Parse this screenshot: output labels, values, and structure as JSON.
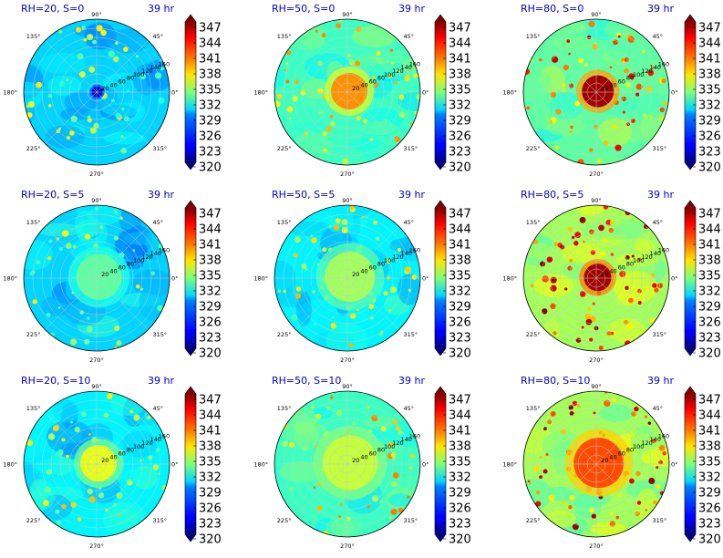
{
  "chart_data": {
    "type": "polar-contour-grid",
    "time_label": "39 hr",
    "angle_ticks": [
      "0°",
      "45°",
      "90°",
      "135°",
      "180°",
      "225°",
      "270°",
      "315°"
    ],
    "radius_ticks": [
      20,
      40,
      60,
      80,
      100,
      120,
      140,
      160
    ],
    "colorbar": {
      "min": 320,
      "max": 350,
      "ticks": [
        320,
        323,
        326,
        329,
        332,
        335,
        338,
        341,
        344,
        347
      ],
      "colormap": "jet",
      "extend": "both"
    },
    "panels": [
      {
        "title": "RH=20, S=0",
        "rh": 20,
        "s": 0,
        "mean": 330,
        "core": 322,
        "core_extent": 12
      },
      {
        "title": "RH=50, S=0",
        "rh": 50,
        "s": 0,
        "mean": 333,
        "core": 342,
        "core_extent": 40
      },
      {
        "title": "RH=80, S=0",
        "rh": 80,
        "s": 0,
        "mean": 334,
        "core": 349,
        "core_extent": 35
      },
      {
        "title": "RH=20, S=5",
        "rh": 20,
        "s": 5,
        "mean": 330,
        "core": 334,
        "core_extent": 50
      },
      {
        "title": "RH=50, S=5",
        "rh": 50,
        "s": 5,
        "mean": 331,
        "core": 336,
        "core_extent": 55
      },
      {
        "title": "RH=80, S=5",
        "rh": 80,
        "s": 5,
        "mean": 336,
        "core": 349,
        "core_extent": 30
      },
      {
        "title": "RH=20, S=10",
        "rh": 20,
        "s": 10,
        "mean": 331,
        "core": 338,
        "core_extent": 40
      },
      {
        "title": "RH=50, S=10",
        "rh": 50,
        "s": 10,
        "mean": 333,
        "core": 337,
        "core_extent": 60
      },
      {
        "title": "RH=80, S=10",
        "rh": 80,
        "s": 10,
        "mean": 336,
        "core": 344,
        "core_extent": 55
      }
    ]
  }
}
